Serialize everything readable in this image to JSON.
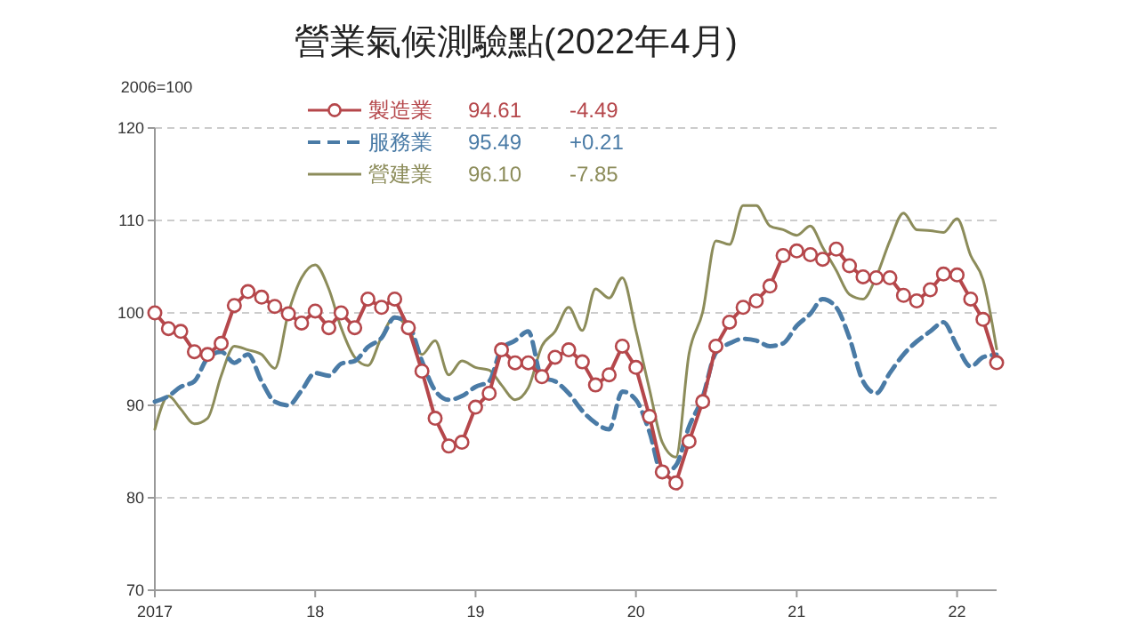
{
  "chart_data": {
    "type": "line",
    "title": "營業氣候測驗點(2022年4月)",
    "ylabel": "2006=100",
    "x": [
      "2017-01",
      "2017-02",
      "2017-03",
      "2017-04",
      "2017-05",
      "2017-06",
      "2017-07",
      "2017-08",
      "2017-09",
      "2017-10",
      "2017-11",
      "2017-12",
      "2018-01",
      "2018-02",
      "2018-03",
      "2018-04",
      "2018-05",
      "2018-06",
      "2018-07",
      "2018-08",
      "2018-09",
      "2018-10",
      "2018-11",
      "2018-12",
      "2019-01",
      "2019-02",
      "2019-03",
      "2019-04",
      "2019-05",
      "2019-06",
      "2019-07",
      "2019-08",
      "2019-09",
      "2019-10",
      "2019-11",
      "2019-12",
      "2020-01",
      "2020-02",
      "2020-03",
      "2020-04",
      "2020-05",
      "2020-06",
      "2020-07",
      "2020-08",
      "2020-09",
      "2020-10",
      "2020-11",
      "2020-12",
      "2021-01",
      "2021-02",
      "2021-03",
      "2021-04",
      "2021-05",
      "2021-06",
      "2021-07",
      "2021-08",
      "2021-09",
      "2021-10",
      "2021-11",
      "2021-12",
      "2022-01",
      "2022-02",
      "2022-03",
      "2022-04"
    ],
    "series": [
      {
        "name": "製造業",
        "color": "#b5474b",
        "marker": "circle",
        "line_style": "solid",
        "values": [
          100,
          98.3,
          98,
          95.8,
          95.5,
          96.7,
          100.8,
          102.3,
          101.7,
          100.7,
          99.9,
          98.9,
          100.2,
          98.4,
          100,
          98.4,
          101.5,
          100.6,
          101.5,
          98.4,
          93.7,
          88.6,
          85.6,
          86,
          89.8,
          91.3,
          96,
          94.6,
          94.6,
          93.1,
          95.2,
          96,
          94.7,
          92.2,
          93.3,
          96.4,
          94.1,
          88.8,
          82.8,
          81.6,
          86.1,
          90.4,
          96.4,
          99,
          100.6,
          101.3,
          102.9,
          106.2,
          106.7,
          106.3,
          105.8,
          106.9,
          105.1,
          103.9,
          103.8,
          103.8,
          101.9,
          101.3,
          102.5,
          104.2,
          104.1,
          101.5,
          99.3,
          94.61
        ]
      },
      {
        "name": "服務業",
        "color": "#4a7ba6",
        "marker": "none",
        "line_style": "dashed",
        "values": [
          90.4,
          91,
          92,
          92.6,
          95.1,
          95.8,
          94.6,
          95.5,
          92.6,
          90.4,
          90,
          91.6,
          93.5,
          93.2,
          94.5,
          94.8,
          96.3,
          97.3,
          99.5,
          98.8,
          94.8,
          91.6,
          90.6,
          91,
          92,
          92.6,
          96.1,
          97,
          98,
          93,
          92.6,
          91.3,
          89.4,
          88.1,
          87.4,
          91.5,
          90.6,
          87.1,
          82.6,
          83.5,
          87.7,
          90.9,
          95.7,
          96.7,
          97.2,
          97,
          96.4,
          96.7,
          98.6,
          99.9,
          101.5,
          100.6,
          97.3,
          92.6,
          91.3,
          93.5,
          95.5,
          96.9,
          98,
          99,
          96.4,
          94.2,
          95.2,
          95.49
        ]
      },
      {
        "name": "營建業",
        "color": "#8c8c5a",
        "marker": "none",
        "line_style": "solid",
        "values": [
          87.4,
          91,
          89.6,
          88,
          88.6,
          93.2,
          96.4,
          96,
          95.5,
          94,
          100,
          103.8,
          105.2,
          102.6,
          98.4,
          95.2,
          94.3,
          97.4,
          99.6,
          98.3,
          95.5,
          97,
          93.3,
          94.8,
          94.1,
          93.8,
          92.2,
          90.6,
          91.9,
          96.4,
          98,
          100.6,
          98.1,
          102.6,
          101.6,
          103.8,
          98.1,
          91.7,
          86,
          84.4,
          95.6,
          100.1,
          107.8,
          107.4,
          111.6,
          111.6,
          109.4,
          109,
          108.4,
          109.4,
          107.1,
          104.6,
          102,
          101.5,
          103.9,
          107.8,
          110.8,
          109,
          108.9,
          108.7,
          110.2,
          106.2,
          103.6,
          96.1
        ]
      }
    ],
    "annotations": [
      "94.61",
      "-4.49",
      "95.49",
      "+0.21",
      "96.10",
      "-7.85"
    ],
    "xlim": [
      "2017-01",
      "2022-04"
    ],
    "xticks": [
      {
        "value": "2017-01",
        "label": "2017"
      },
      {
        "value": "2018-01",
        "label": "18"
      },
      {
        "value": "2019-01",
        "label": "19"
      },
      {
        "value": "2020-01",
        "label": "20"
      },
      {
        "value": "2021-01",
        "label": "21"
      },
      {
        "value": "2022-01",
        "label": "22"
      }
    ],
    "ylim": [
      70,
      120
    ],
    "yticks": [
      70,
      80,
      90,
      100,
      110,
      120
    ],
    "grid": "y",
    "legend": "top left"
  }
}
